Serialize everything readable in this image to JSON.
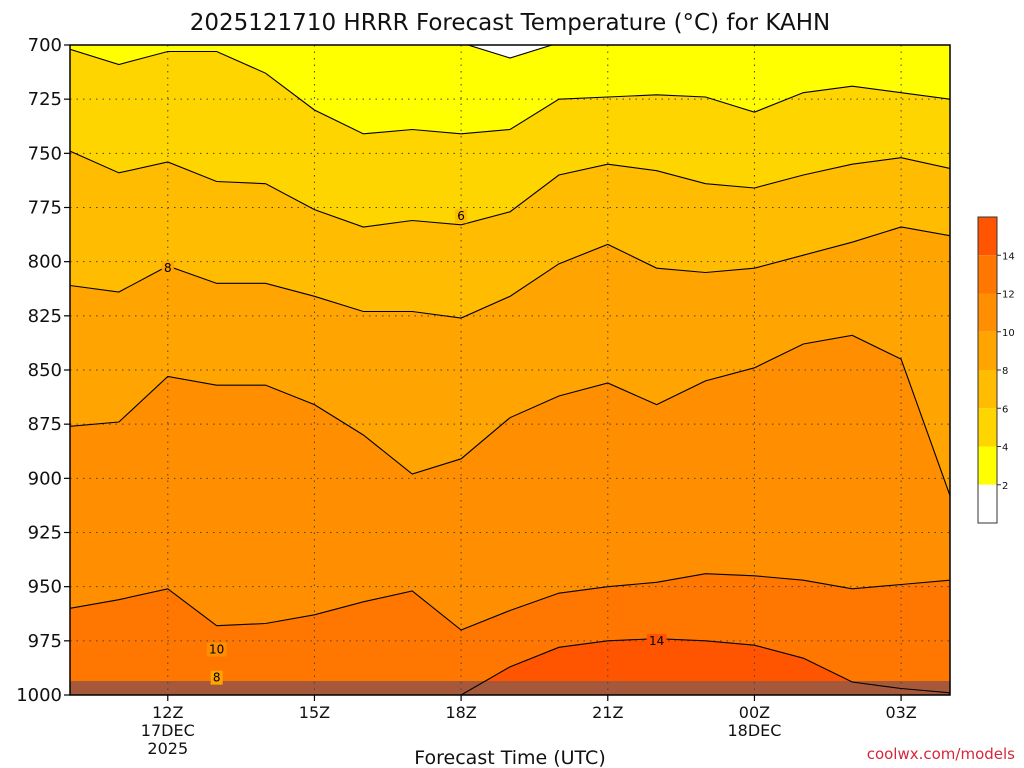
{
  "chart_data": {
    "type": "area",
    "title": "2025121710 HRRR Forecast Temperature (°C) for KAHN",
    "xlabel": "Forecast Time (UTC)",
    "ylabel": "",
    "credit": "coolwx.com/models",
    "x_ticks": [
      {
        "label": "12Z",
        "sub": [
          "17DEC",
          "2025"
        ],
        "hour": 12
      },
      {
        "label": "15Z",
        "sub": [],
        "hour": 15
      },
      {
        "label": "18Z",
        "sub": [],
        "hour": 18
      },
      {
        "label": "21Z",
        "sub": [],
        "hour": 21
      },
      {
        "label": "00Z",
        "sub": [
          "18DEC"
        ],
        "hour": 24
      },
      {
        "label": "03Z",
        "sub": [],
        "hour": 27
      }
    ],
    "xlim": [
      10,
      28
    ],
    "ylim": [
      1000,
      700
    ],
    "y_ticks": [
      700,
      725,
      750,
      775,
      800,
      825,
      850,
      875,
      900,
      925,
      950,
      975,
      1000
    ],
    "contour_interval": 2,
    "contour_labels": [
      {
        "value": "8",
        "hour": 12,
        "pressure": 803
      },
      {
        "value": "6",
        "hour": 18,
        "pressure": 779
      },
      {
        "value": "10",
        "hour": 13,
        "pressure": 979
      },
      {
        "value": "8",
        "hour": 13,
        "pressure": 992
      },
      {
        "value": "14",
        "hour": 22,
        "pressure": 975
      }
    ],
    "colorbar": {
      "labels": [
        "14",
        "12",
        "10",
        "8",
        "6",
        "4",
        "2"
      ],
      "values": [
        14,
        12,
        10,
        8,
        6,
        4,
        2
      ],
      "colors": [
        "#ff5500",
        "#ff7700",
        "#ff8f00",
        "#ffa400",
        "#ffbc00",
        "#ffd500",
        "#ffff00"
      ],
      "low_color": "#ffffff",
      "high_color": "#ff5500"
    },
    "hours": [
      10,
      11,
      12,
      13,
      14,
      15,
      16,
      17,
      18,
      19,
      20,
      21,
      22,
      23,
      24,
      25,
      26,
      27,
      28
    ],
    "contours": [
      {
        "value": 2,
        "pressures": [
          null,
          null,
          null,
          null,
          null,
          null,
          null,
          null,
          699,
          706,
          699,
          null,
          null,
          null,
          null,
          null,
          null,
          null,
          null
        ]
      },
      {
        "value": 4,
        "pressures": [
          702,
          709,
          703,
          703,
          713,
          730,
          741,
          739,
          741,
          739,
          725,
          724,
          723,
          724,
          731,
          722,
          719,
          722,
          725
        ]
      },
      {
        "value": 6,
        "pressures": [
          749,
          759,
          754,
          763,
          764,
          776,
          784,
          781,
          783,
          777,
          760,
          755,
          758,
          764,
          766,
          760,
          755,
          752,
          757
        ]
      },
      {
        "value": 8,
        "pressures": [
          811,
          814,
          802,
          810,
          810,
          816,
          823,
          823,
          826,
          816,
          801,
          792,
          803,
          805,
          803,
          797,
          791,
          784,
          788
        ]
      },
      {
        "value": 10,
        "pressures": [
          876,
          874,
          853,
          857,
          857,
          866,
          880,
          898,
          891,
          872,
          862,
          856,
          866,
          855,
          849,
          838,
          834,
          845,
          908
        ]
      },
      {
        "value": 12,
        "pressures": [
          960,
          956,
          951,
          968,
          967,
          963,
          957,
          952,
          970,
          961,
          953,
          950,
          948,
          944,
          945,
          947,
          951,
          949,
          947
        ]
      },
      {
        "value": 14,
        "pressures": [
          null,
          null,
          null,
          null,
          null,
          null,
          null,
          null,
          1000,
          987,
          978,
          975,
          974,
          975,
          977,
          983,
          994,
          997,
          999
        ]
      }
    ]
  }
}
